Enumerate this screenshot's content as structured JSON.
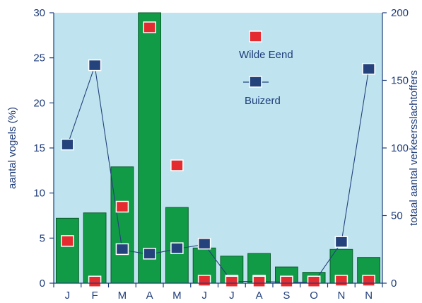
{
  "chart_data": {
    "type": "bar",
    "categories": [
      "J",
      "F",
      "M",
      "A",
      "M",
      "J",
      "J",
      "A",
      "S",
      "O",
      "N",
      "N"
    ],
    "series": [
      {
        "type": "bar",
        "axis": "right",
        "values": [
          48,
          52,
          86,
          200,
          56,
          26,
          20,
          22,
          12,
          8,
          25,
          19
        ],
        "color": "#119b47"
      },
      {
        "name": "Wilde Eend",
        "type": "marker",
        "axis": "left",
        "values": [
          4.6,
          0.1,
          8.4,
          28.3,
          13.0,
          0.2,
          0.1,
          0.1,
          0.1,
          0.1,
          0.2,
          0.2
        ],
        "color": "#e42b30"
      },
      {
        "name": "Buizerd",
        "type": "line",
        "axis": "left",
        "values": [
          15.3,
          24.1,
          3.7,
          3.2,
          3.8,
          4.3,
          0.2,
          0.2,
          0.1,
          0.1,
          4.5,
          23.7
        ],
        "color": "#24427b"
      }
    ],
    "ylabel": "aantal vogels (%)",
    "y2label": "totaal aantal verkeersslachtoffers",
    "ylim": [
      0,
      30
    ],
    "y2lim": [
      0,
      200
    ],
    "yticks": [
      0,
      5,
      10,
      15,
      20,
      25,
      30
    ],
    "y2ticks": [
      0,
      50,
      100,
      150,
      200
    ],
    "legend_position": "top-right",
    "plot_background": "#bfe4ef"
  }
}
